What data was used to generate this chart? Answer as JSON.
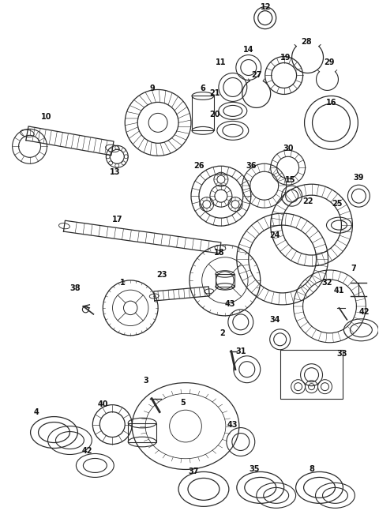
{
  "bg_color": "#ffffff",
  "fig_width": 4.8,
  "fig_height": 6.61,
  "dpi": 100,
  "lc": "#2a2a2a",
  "lw": 0.7
}
